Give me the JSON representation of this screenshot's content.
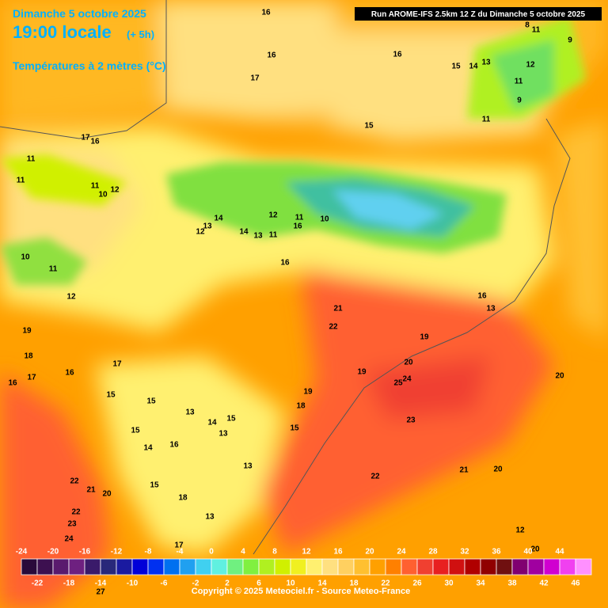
{
  "header": {
    "date": "Dimanche 5 octobre 2025",
    "time": "19:00 locale",
    "offset": "(+ 5h)",
    "field": "Températures à 2 mètres (°C)",
    "run": "Run AROME-IFS 2.5km 12 Z du Dimanche 5 octobre 2025"
  },
  "map_labels": [
    16,
    16,
    17,
    16,
    15,
    15,
    14,
    13,
    8,
    11,
    9,
    12,
    11,
    9,
    11,
    17,
    16,
    11,
    11,
    11,
    10,
    12,
    14,
    13,
    12,
    14,
    12,
    11,
    10,
    16,
    11,
    13,
    16,
    10,
    11,
    12,
    16,
    13,
    21,
    22,
    19,
    19,
    18,
    17,
    16,
    16,
    17,
    19,
    20,
    25,
    24,
    20,
    19,
    18,
    15,
    15,
    13,
    14,
    15,
    15,
    14,
    16,
    13,
    15,
    23,
    13,
    22,
    21,
    20,
    22,
    21,
    20,
    15,
    18,
    22,
    13,
    23,
    24,
    17,
    20,
    12,
    27
  ],
  "scale": {
    "top_labels": [
      -24,
      -20,
      -16,
      -12,
      -8,
      -4,
      0,
      4,
      8,
      12,
      16,
      20,
      24,
      28,
      32,
      36,
      40,
      44
    ],
    "bottom_labels": [
      -22,
      -18,
      -14,
      -10,
      -6,
      -2,
      2,
      6,
      10,
      14,
      18,
      22,
      26,
      30,
      34,
      38,
      42,
      46
    ],
    "colors": [
      "#2a0a3a",
      "#3d1050",
      "#5a1a6e",
      "#6e2080",
      "#3a1a6a",
      "#28287a",
      "#1a1aa0",
      "#0000d8",
      "#0030f0",
      "#0070f0",
      "#20a0f0",
      "#40d0f0",
      "#60f0e0",
      "#70f080",
      "#80f040",
      "#b0f020",
      "#d0f000",
      "#f0f020",
      "#fff070",
      "#ffe080",
      "#ffd060",
      "#ffc030",
      "#ffa000",
      "#ff8000",
      "#ff6030",
      "#f04030",
      "#e82020",
      "#d01010",
      "#b00000",
      "#900000",
      "#701010",
      "#800070",
      "#a000a0",
      "#d000d0",
      "#f040f0",
      "#ff90ff"
    ]
  },
  "footer": {
    "copyright": "Copyright © 2025 Meteociel.fr - Source Meteo-France"
  }
}
